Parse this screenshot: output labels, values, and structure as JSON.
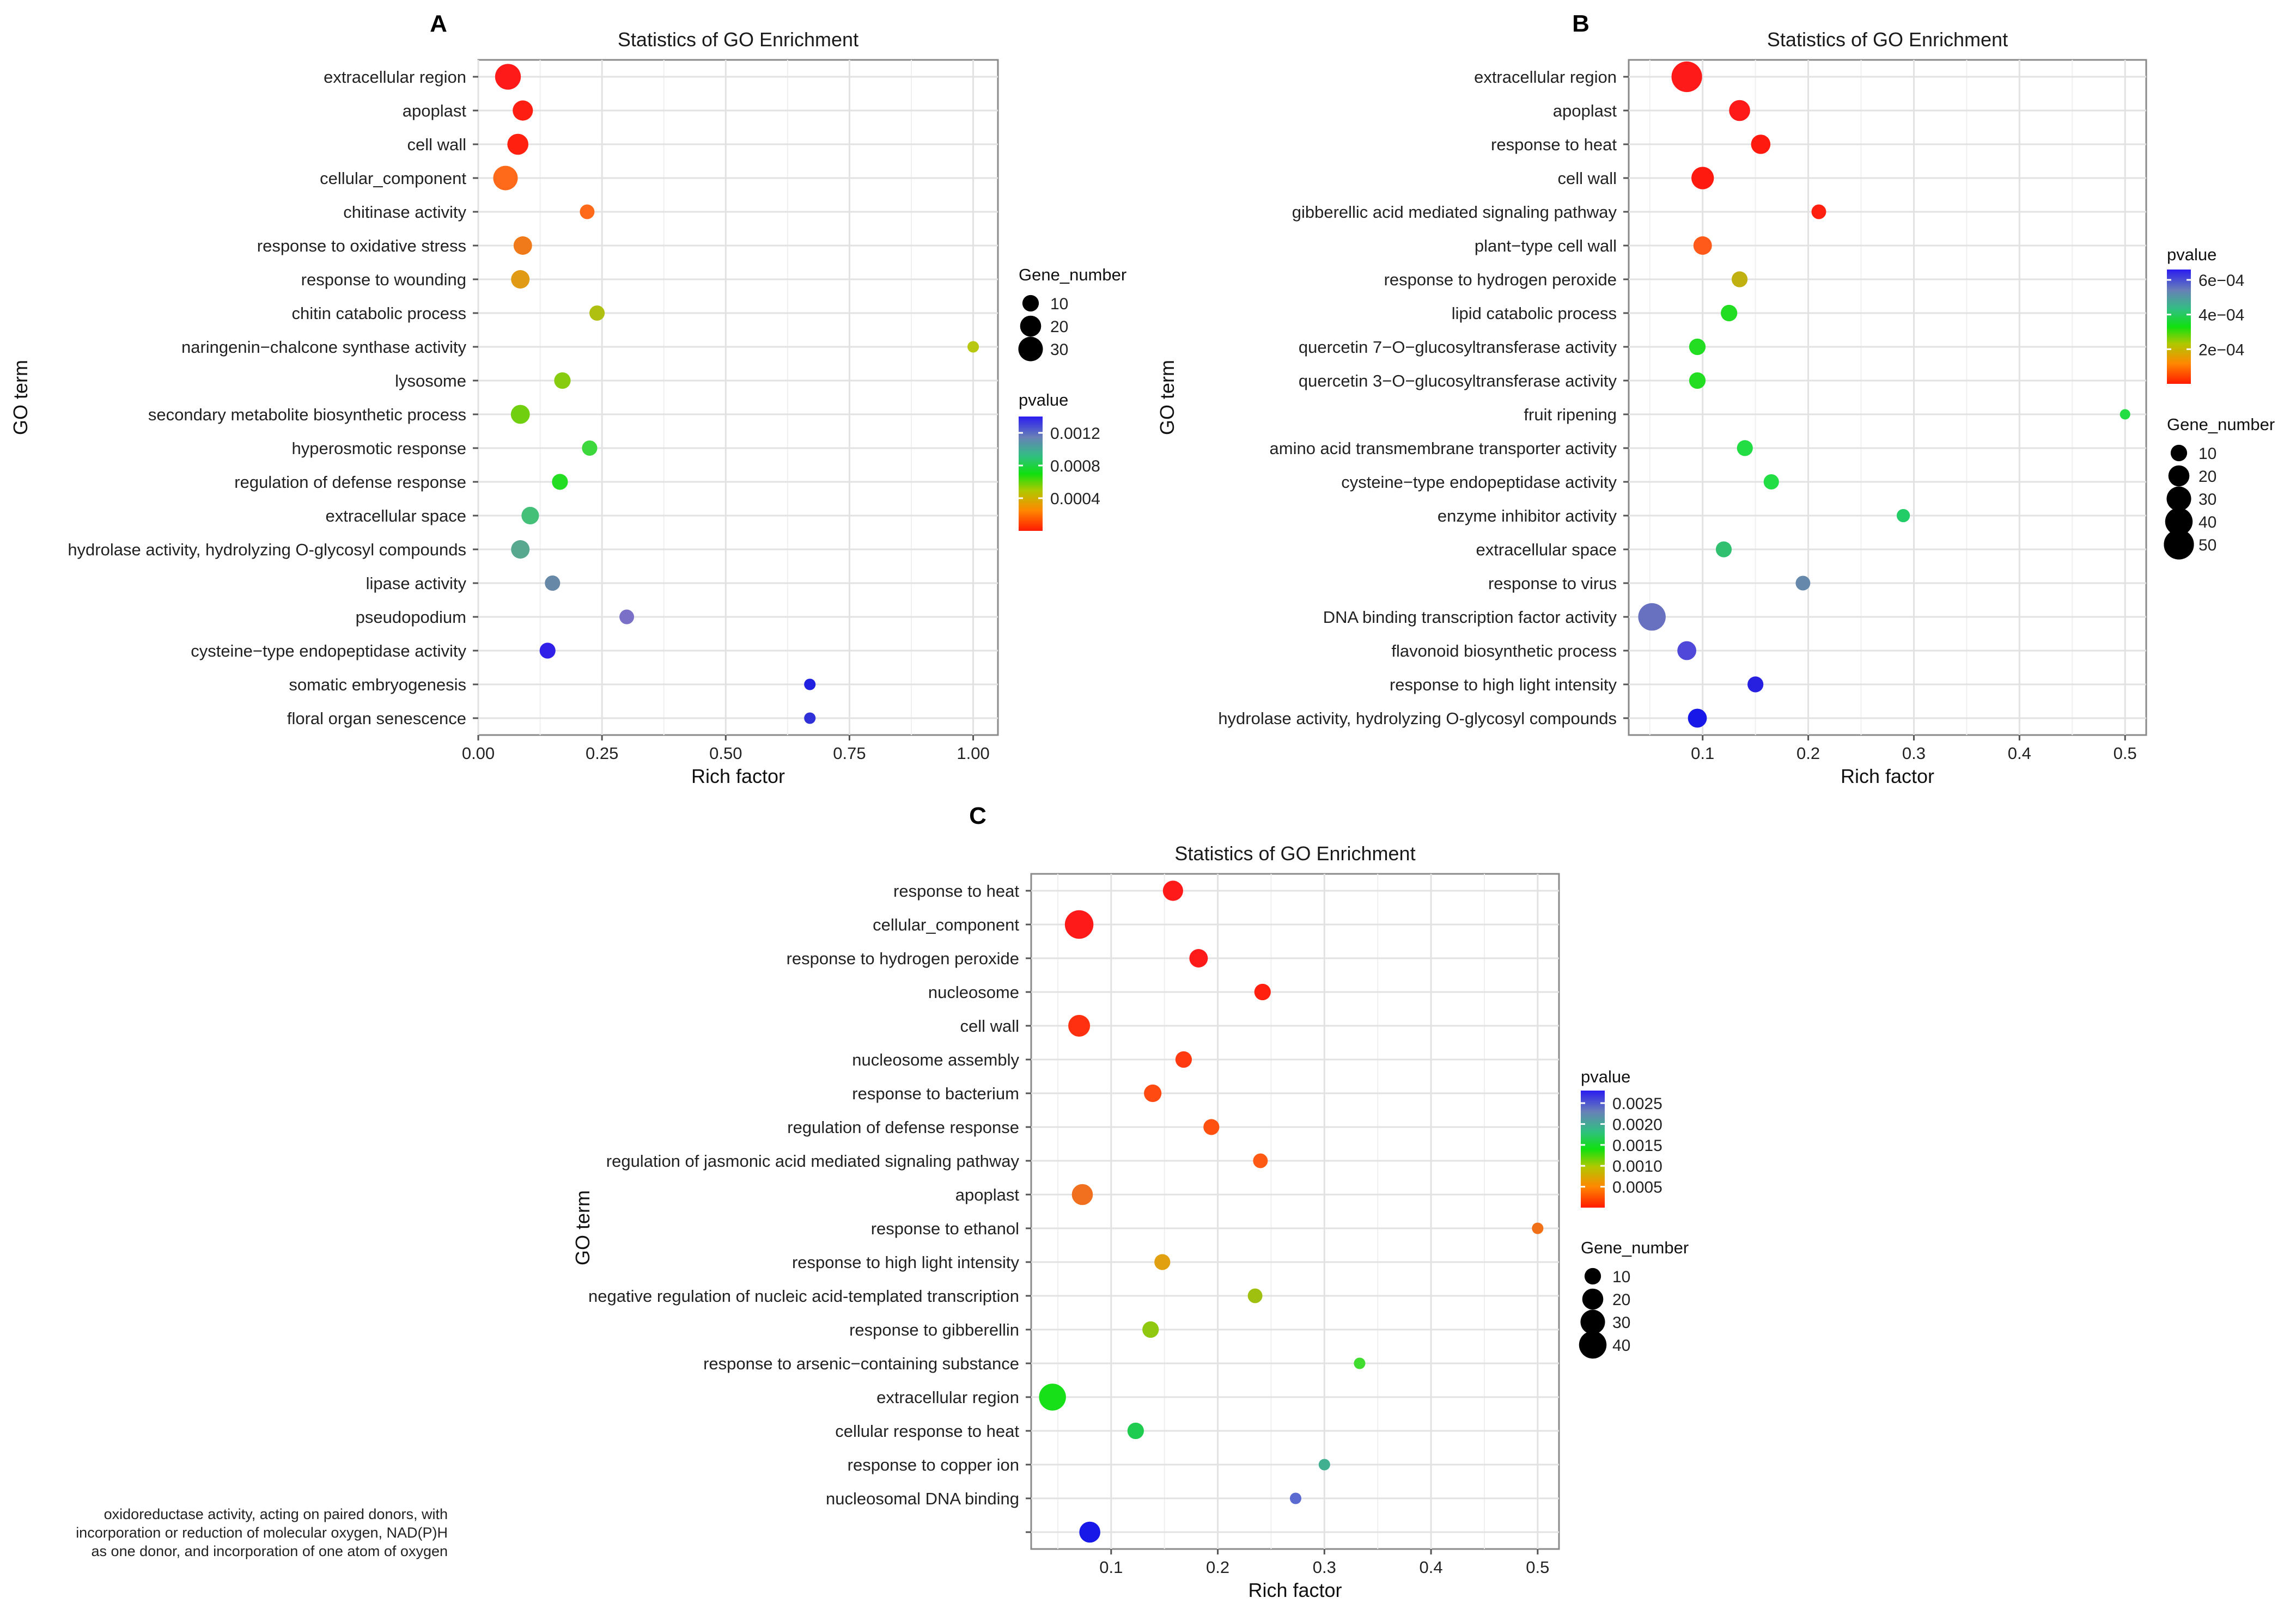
{
  "chart_data": [
    {
      "panel": "A",
      "type": "scatter",
      "title": "Statistics of GO Enrichment",
      "xlabel": "Rich factor",
      "ylabel": "GO term",
      "xlim": [
        0.0,
        1.05
      ],
      "xticks": [
        0.0,
        0.25,
        0.5,
        0.75,
        1.0
      ],
      "xtick_labels": [
        "0.00",
        "0.25",
        "0.50",
        "0.75",
        "1.00"
      ],
      "grid": true,
      "terms": [
        {
          "term": "extracellular region",
          "rich_factor": 0.06,
          "gene_number": 34,
          "color": "#ff1a1a"
        },
        {
          "term": "apoplast",
          "rich_factor": 0.09,
          "gene_number": 18,
          "color": "#ff1e12"
        },
        {
          "term": "cell wall",
          "rich_factor": 0.08,
          "gene_number": 20,
          "color": "#ff2010"
        },
        {
          "term": "cellular_component",
          "rich_factor": 0.055,
          "gene_number": 30,
          "color": "#ff6a1a"
        },
        {
          "term": "chitinase activity",
          "rich_factor": 0.22,
          "gene_number": 7,
          "color": "#ff6a1a"
        },
        {
          "term": "response to oxidative stress",
          "rich_factor": 0.09,
          "gene_number": 14,
          "color": "#f07a1a"
        },
        {
          "term": "response to wounding",
          "rich_factor": 0.085,
          "gene_number": 14,
          "color": "#e09a14"
        },
        {
          "term": "chitin catabolic process",
          "rich_factor": 0.24,
          "gene_number": 8,
          "color": "#b0c010"
        },
        {
          "term": "naringenin−chalcone synthase activity",
          "rich_factor": 1.0,
          "gene_number": 3,
          "color": "#b8c810"
        },
        {
          "term": "lysosome",
          "rich_factor": 0.17,
          "gene_number": 10,
          "color": "#88cc10"
        },
        {
          "term": "secondary metabolite biosynthetic process",
          "rich_factor": 0.085,
          "gene_number": 15,
          "color": "#70d010"
        },
        {
          "term": "hyperosmotic response",
          "rich_factor": 0.225,
          "gene_number": 8,
          "color": "#3cd83c"
        },
        {
          "term": "regulation of defense response",
          "rich_factor": 0.165,
          "gene_number": 9,
          "color": "#22dd22"
        },
        {
          "term": "extracellular space",
          "rich_factor": 0.105,
          "gene_number": 12,
          "color": "#44c078"
        },
        {
          "term": "hydrolase activity, hydrolyzing O-glycosyl compounds",
          "rich_factor": 0.085,
          "gene_number": 14,
          "color": "#58a890"
        },
        {
          "term": "lipase activity",
          "rich_factor": 0.15,
          "gene_number": 8,
          "color": "#6888a8"
        },
        {
          "term": "pseudopodium",
          "rich_factor": 0.3,
          "gene_number": 7,
          "color": "#7a70c8"
        },
        {
          "term": "cysteine−type endopeptidase activity",
          "rich_factor": 0.14,
          "gene_number": 9,
          "color": "#3020e8"
        },
        {
          "term": "somatic embryogenesis",
          "rich_factor": 0.67,
          "gene_number": 3,
          "color": "#2020e0"
        },
        {
          "term": "floral organ senescence",
          "rich_factor": 0.67,
          "gene_number": 3,
          "color": "#3030d8"
        }
      ],
      "legend_size": {
        "title": "Gene_number",
        "values": [
          10,
          20,
          30
        ],
        "labels": [
          "10",
          "20",
          "30"
        ]
      },
      "legend_color": {
        "title": "pvalue",
        "ticks": [
          0.0004,
          0.0008,
          0.0012
        ],
        "labels": [
          "0.0004",
          "0.0008",
          "0.0012"
        ],
        "range": [
          0.0,
          0.0014
        ]
      }
    },
    {
      "panel": "B",
      "type": "scatter",
      "title": "Statistics of GO Enrichment",
      "xlabel": "Rich factor",
      "ylabel": "GO term",
      "xlim": [
        0.03,
        0.52
      ],
      "xticks": [
        0.1,
        0.2,
        0.3,
        0.4,
        0.5
      ],
      "xtick_labels": [
        "0.1",
        "0.2",
        "0.3",
        "0.4",
        "0.5"
      ],
      "grid": true,
      "terms": [
        {
          "term": "extracellular region",
          "rich_factor": 0.085,
          "gene_number": 52,
          "color": "#ff1a1a"
        },
        {
          "term": "apoplast",
          "rich_factor": 0.135,
          "gene_number": 20,
          "color": "#ff1a1a"
        },
        {
          "term": "response to heat",
          "rich_factor": 0.155,
          "gene_number": 16,
          "color": "#ff1a10"
        },
        {
          "term": "cell wall",
          "rich_factor": 0.1,
          "gene_number": 24,
          "color": "#ff1a10"
        },
        {
          "term": "gibberellic acid mediated signaling pathway",
          "rich_factor": 0.21,
          "gene_number": 7,
          "color": "#ff2010"
        },
        {
          "term": "plant−type cell wall",
          "rich_factor": 0.1,
          "gene_number": 14,
          "color": "#ff5a1a"
        },
        {
          "term": "response to hydrogen peroxide",
          "rich_factor": 0.135,
          "gene_number": 9,
          "color": "#c0b010"
        },
        {
          "term": "lipid catabolic process",
          "rich_factor": 0.125,
          "gene_number": 10,
          "color": "#22dd22"
        },
        {
          "term": "quercetin 7−O−glucosyltransferase activity",
          "rich_factor": 0.095,
          "gene_number": 10,
          "color": "#22dd22"
        },
        {
          "term": "quercetin 3−O−glucosyltransferase activity",
          "rich_factor": 0.095,
          "gene_number": 10,
          "color": "#22dd22"
        },
        {
          "term": "fruit ripening",
          "rich_factor": 0.5,
          "gene_number": 2,
          "color": "#22dd44"
        },
        {
          "term": "amino acid transmembrane transporter activity",
          "rich_factor": 0.14,
          "gene_number": 9,
          "color": "#22dd44"
        },
        {
          "term": "cysteine−type endopeptidase activity",
          "rich_factor": 0.165,
          "gene_number": 8,
          "color": "#22dd44"
        },
        {
          "term": "enzyme inhibitor activity",
          "rich_factor": 0.29,
          "gene_number": 5,
          "color": "#22cc66"
        },
        {
          "term": "extracellular space",
          "rich_factor": 0.12,
          "gene_number": 9,
          "color": "#30c070"
        },
        {
          "term": "response to virus",
          "rich_factor": 0.195,
          "gene_number": 7,
          "color": "#6688aa"
        },
        {
          "term": "DNA binding transcription factor activity",
          "rich_factor": 0.052,
          "gene_number": 40,
          "color": "#6870c0"
        },
        {
          "term": "flavonoid biosynthetic process",
          "rich_factor": 0.085,
          "gene_number": 15,
          "color": "#5048d8"
        },
        {
          "term": "response to high light intensity",
          "rich_factor": 0.15,
          "gene_number": 9,
          "color": "#2820e0"
        },
        {
          "term": "hydrolase activity, hydrolyzing O-glycosyl compounds",
          "rich_factor": 0.095,
          "gene_number": 15,
          "color": "#1818e8"
        }
      ],
      "legend_color": {
        "title": "pvalue",
        "ticks": [
          0.0002,
          0.0004,
          0.0006
        ],
        "labels": [
          "2e−04",
          "4e−04",
          "6e−04"
        ],
        "range": [
          0.0,
          0.00066
        ]
      },
      "legend_size": {
        "title": "Gene_number",
        "values": [
          10,
          20,
          30,
          40,
          50
        ],
        "labels": [
          "10",
          "20",
          "30",
          "40",
          "50"
        ]
      }
    },
    {
      "panel": "C",
      "type": "scatter",
      "title": "Statistics of GO Enrichment",
      "xlabel": "Rich factor",
      "ylabel": "GO term",
      "xlim": [
        0.025,
        0.52
      ],
      "xticks": [
        0.1,
        0.2,
        0.3,
        0.4,
        0.5
      ],
      "xtick_labels": [
        "0.1",
        "0.2",
        "0.3",
        "0.4",
        "0.5"
      ],
      "grid": true,
      "terms": [
        {
          "term": "response to heat",
          "rich_factor": 0.158,
          "gene_number": 18,
          "color": "#ff1a1a"
        },
        {
          "term": "cellular_component",
          "rich_factor": 0.07,
          "gene_number": 44,
          "color": "#ff1a1a"
        },
        {
          "term": "response to hydrogen peroxide",
          "rich_factor": 0.182,
          "gene_number": 14,
          "color": "#ff1a1a"
        },
        {
          "term": "nucleosome",
          "rich_factor": 0.242,
          "gene_number": 10,
          "color": "#ff2010"
        },
        {
          "term": "cell wall",
          "rich_factor": 0.07,
          "gene_number": 22,
          "color": "#ff3010"
        },
        {
          "term": "nucleosome assembly",
          "rich_factor": 0.168,
          "gene_number": 10,
          "color": "#ff3a10"
        },
        {
          "term": "response to bacterium",
          "rich_factor": 0.139,
          "gene_number": 12,
          "color": "#ff4a12"
        },
        {
          "term": "regulation of defense response",
          "rich_factor": 0.194,
          "gene_number": 9,
          "color": "#ff5010"
        },
        {
          "term": "regulation of jasmonic acid mediated signaling pathway",
          "rich_factor": 0.24,
          "gene_number": 7,
          "color": "#ff5a14"
        },
        {
          "term": "apoplast",
          "rich_factor": 0.073,
          "gene_number": 20,
          "color": "#f07020"
        },
        {
          "term": "response to ethanol",
          "rich_factor": 0.5,
          "gene_number": 3,
          "color": "#f07018"
        },
        {
          "term": "response to high light intensity",
          "rich_factor": 0.148,
          "gene_number": 9,
          "color": "#e0a010"
        },
        {
          "term": "negative regulation of nucleic acid-templated transcription",
          "rich_factor": 0.235,
          "gene_number": 7,
          "color": "#a0c010"
        },
        {
          "term": "response to gibberellin",
          "rich_factor": 0.137,
          "gene_number": 10,
          "color": "#90c810"
        },
        {
          "term": "response to arsenic−containing substance",
          "rich_factor": 0.333,
          "gene_number": 3,
          "color": "#40dd30"
        },
        {
          "term": "extracellular region",
          "rich_factor": 0.045,
          "gene_number": 38,
          "color": "#18e018"
        },
        {
          "term": "cellular response to heat",
          "rich_factor": 0.123,
          "gene_number": 10,
          "color": "#20cc50"
        },
        {
          "term": "response to copper ion",
          "rich_factor": 0.3,
          "gene_number": 3,
          "color": "#40b090"
        },
        {
          "term": "nucleosomal DNA binding",
          "rich_factor": 0.273,
          "gene_number": 3,
          "color": "#5a6ad0"
        },
        {
          "term": "oxidoreductase activity, acting on paired donors, with incorporation or reduction of molecular oxygen, NAD(P)H as one donor, and incorporation of one atom of oxygen",
          "rich_factor": 0.08,
          "gene_number": 20,
          "color": "#1818e8",
          "term_lines": [
            "oxidoreductase activity, acting on paired donors, with",
            "incorporation or reduction of molecular oxygen, NAD(P)H",
            "as one donor, and incorporation of one atom of oxygen"
          ]
        }
      ],
      "legend_color": {
        "title": "pvalue",
        "ticks": [
          0.0005,
          0.001,
          0.0015,
          0.002,
          0.0025
        ],
        "labels": [
          "0.0005",
          "0.0010",
          "0.0015",
          "0.0020",
          "0.0025"
        ],
        "range": [
          0.0,
          0.0028
        ]
      },
      "legend_size": {
        "title": "Gene_number",
        "values": [
          10,
          20,
          30,
          40
        ],
        "labels": [
          "10",
          "20",
          "30",
          "40"
        ]
      }
    }
  ]
}
